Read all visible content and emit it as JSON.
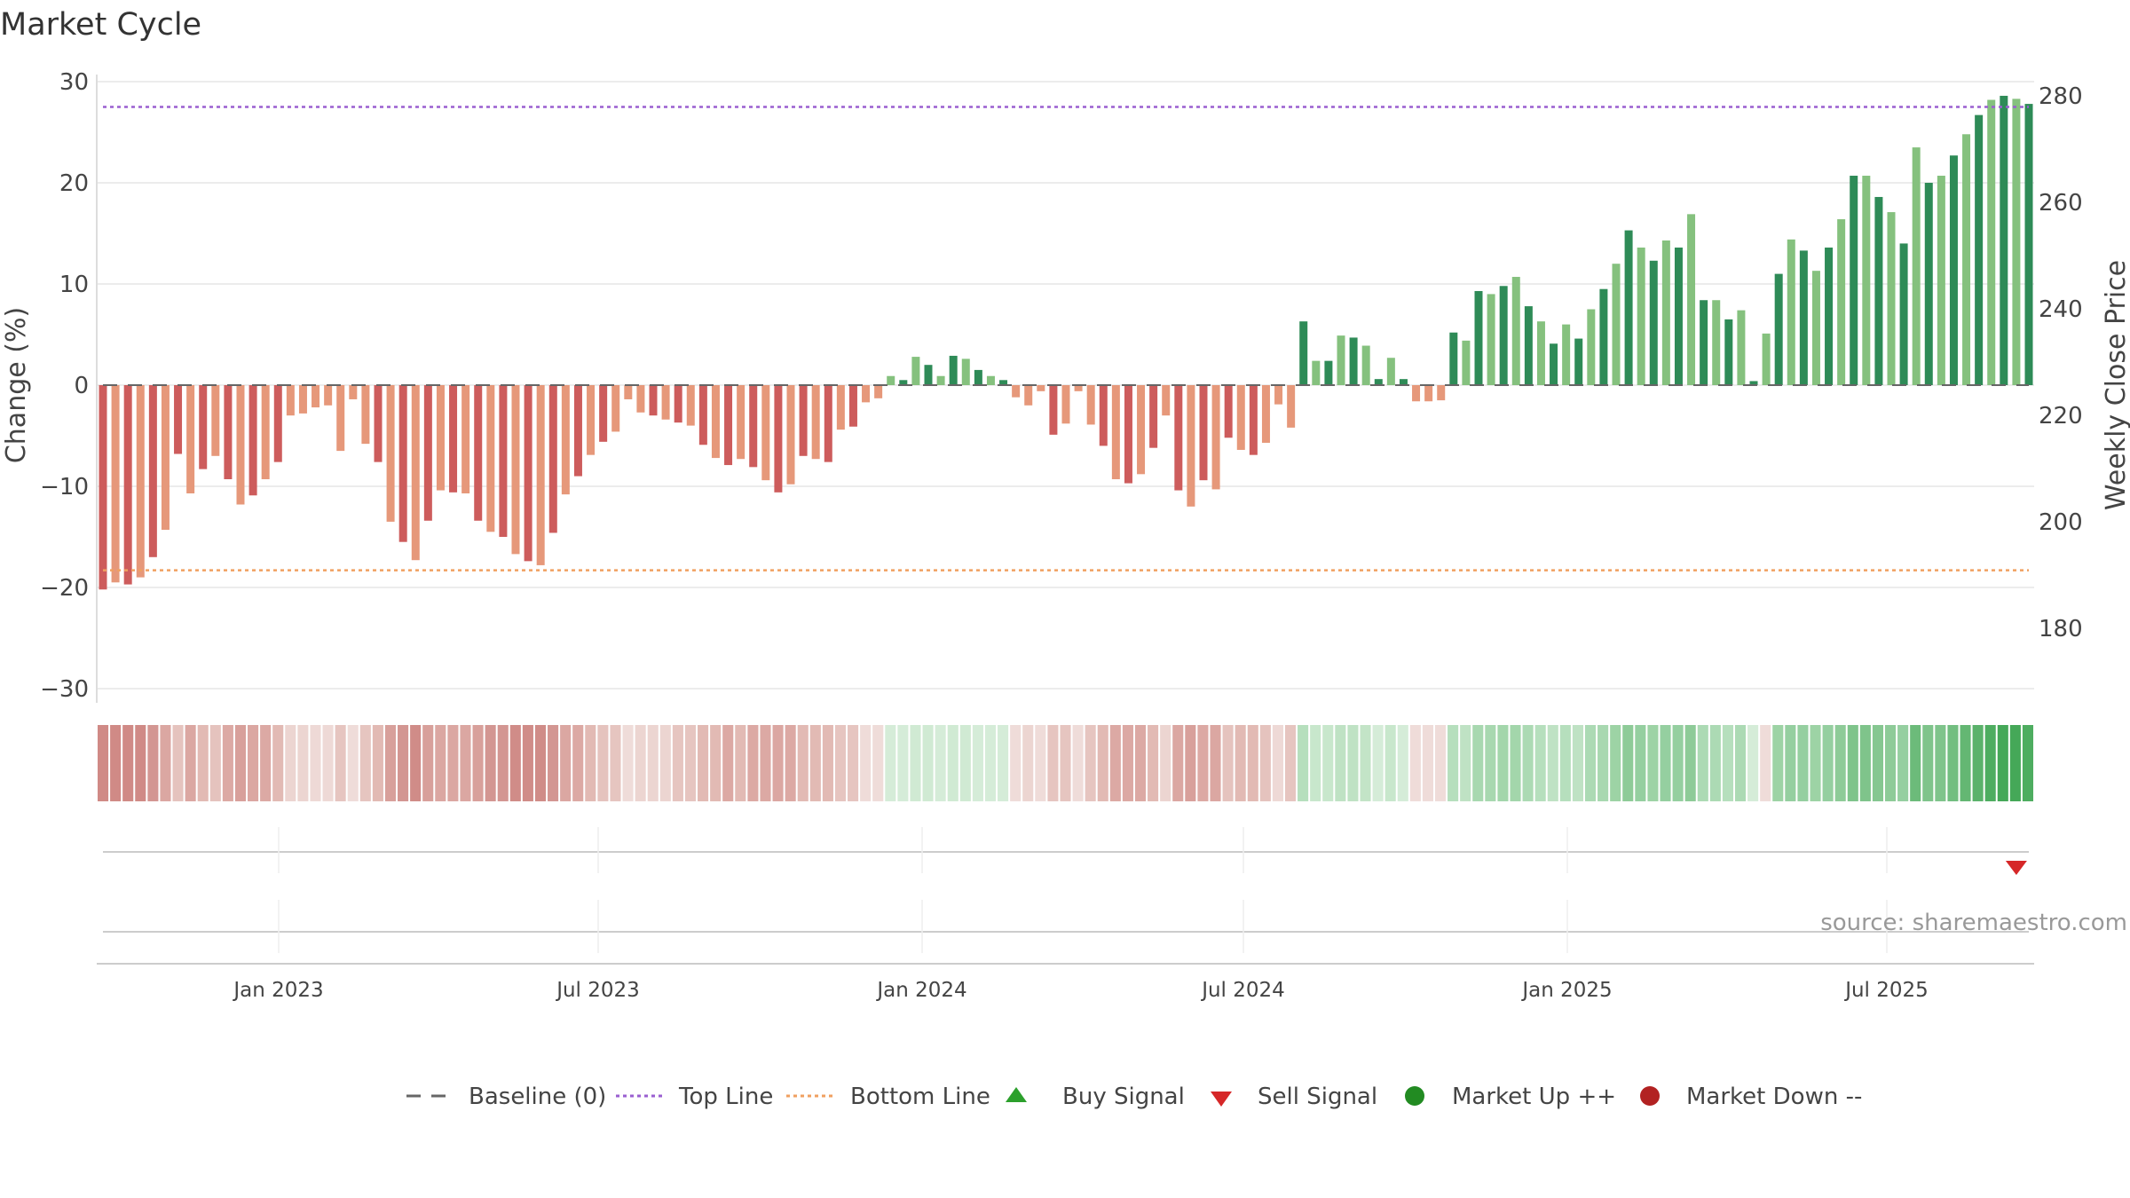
{
  "chart_data": {
    "type": "bar",
    "title": "Market Cycle",
    "ylabel_left": "Change (%)",
    "ylabel_right": "Weekly Close Price",
    "source": "source: sharemaestro.com",
    "y_left_ticks": [
      "30",
      "20",
      "10",
      "0",
      "−10",
      "−20",
      "−30"
    ],
    "y_right_ticks": [
      "280",
      "260",
      "240",
      "220",
      "200",
      "180"
    ],
    "ylim_left": [
      -30,
      30
    ],
    "ylim_right": [
      168,
      283
    ],
    "x_ticks": [
      "Jan 2023",
      "Jul 2023",
      "Jan 2024",
      "Jul 2024",
      "Jan 2025",
      "Jul 2025"
    ],
    "top_line": 27.5,
    "bottom_line": -18.3,
    "baseline": 0,
    "grid": true,
    "legend_position": "bottom-center",
    "colors": {
      "neg_dark": "#cd5c5c",
      "neg_light": "#e6987a",
      "pos_dark": "#2e8b57",
      "pos_light": "#85c17e",
      "top_line": "#9a5fd1",
      "bottom_line": "#f0a060",
      "baseline": "#666666",
      "sell_signal": "#d62728",
      "buy_signal": "#2ca02c",
      "market_up": "#228b22",
      "market_down": "#b22222"
    },
    "values": [
      -20.2,
      -19.5,
      -19.7,
      -19.0,
      -17.0,
      -14.3,
      -6.8,
      -10.7,
      -8.3,
      -7.0,
      -9.3,
      -11.8,
      -10.9,
      -9.3,
      -7.6,
      -3.0,
      -2.8,
      -2.2,
      -2.0,
      -6.5,
      -1.4,
      -5.8,
      -7.6,
      -13.5,
      -15.5,
      -17.3,
      -13.4,
      -10.4,
      -10.6,
      -10.7,
      -13.4,
      -14.5,
      -15.0,
      -16.7,
      -17.4,
      -17.8,
      -14.6,
      -10.8,
      -9.0,
      -6.9,
      -5.6,
      -4.6,
      -1.4,
      -2.7,
      -3.0,
      -3.4,
      -3.7,
      -4.0,
      -5.9,
      -7.2,
      -7.9,
      -7.3,
      -8.1,
      -9.4,
      -10.6,
      -9.8,
      -7.0,
      -7.3,
      -7.6,
      -4.4,
      -4.1,
      -1.7,
      -1.3,
      0.9,
      0.5,
      2.8,
      2.0,
      0.9,
      2.9,
      2.6,
      1.5,
      0.9,
      0.5,
      -1.2,
      -2.0,
      -0.6,
      -4.9,
      -3.8,
      -0.6,
      -3.9,
      -6.0,
      -9.3,
      -9.7,
      -8.8,
      -6.2,
      -3.0,
      -10.4,
      -12.0,
      -9.4,
      -10.3,
      -5.2,
      -6.4,
      -6.9,
      -5.7,
      -1.9,
      -4.2,
      6.3,
      2.4,
      2.4,
      4.9,
      4.7,
      3.9,
      0.6,
      2.7,
      0.6,
      -1.6,
      -1.6,
      -1.5,
      5.2,
      4.4,
      9.3,
      9.0,
      9.8,
      10.7,
      7.8,
      6.3,
      4.1,
      6.0,
      4.6,
      7.5,
      9.5,
      12.0,
      15.3,
      13.6,
      12.3,
      14.3,
      13.6,
      16.9,
      8.4,
      8.4,
      6.5,
      7.4,
      0.4,
      5.1,
      11.0,
      14.4,
      13.3,
      11.3,
      13.6,
      16.4,
      20.7,
      20.7,
      18.6,
      17.1,
      14.0,
      23.5,
      20.0,
      20.7,
      22.7,
      24.8,
      26.7,
      28.2,
      28.6,
      28.3,
      27.8
    ],
    "strip_colors": [
      "#d08a86",
      "#d08a86",
      "#d08a86",
      "#d08a86",
      "#d39692",
      "#dba7a2",
      "#e5c3be",
      "#dba7a2",
      "#e2bab4",
      "#e5c3be",
      "#dca9a4",
      "#d8a09b",
      "#dba7a2",
      "#dca9a4",
      "#e2bab4",
      "#ecd5d1",
      "#ecd5d1",
      "#eed9d6",
      "#eed9d6",
      "#e6c5c0",
      "#efdcd9",
      "#e6c5c0",
      "#e2bab4",
      "#d8a09b",
      "#d39692",
      "#d08c88",
      "#d8a09b",
      "#dba7a2",
      "#dba7a2",
      "#dba7a2",
      "#d8a09b",
      "#d39692",
      "#d39692",
      "#d08c88",
      "#d08c88",
      "#d08c88",
      "#d39692",
      "#dba7a2",
      "#dca9a4",
      "#e2bab4",
      "#e5c3be",
      "#e6c5c0",
      "#efdcd9",
      "#ecd5d1",
      "#ecd5d1",
      "#ecd5d1",
      "#e6c5c0",
      "#e6c5c0",
      "#e2bab4",
      "#e2bab4",
      "#dca9a4",
      "#e2bab4",
      "#dca9a4",
      "#dca9a4",
      "#dba7a2",
      "#dca9a4",
      "#e2bab4",
      "#e2bab4",
      "#e2bab4",
      "#e6c5c0",
      "#e6c5c0",
      "#efdcd9",
      "#efdcd9",
      "#d5ecd8",
      "#d5ecd8",
      "#d0ead3",
      "#d0ead3",
      "#d5ecd8",
      "#d0ead3",
      "#d0ead3",
      "#d5ecd8",
      "#d5ecd8",
      "#d5ecd8",
      "#efdcd9",
      "#ecd5d1",
      "#efdcd9",
      "#e6c5c0",
      "#e6c5c0",
      "#efdcd9",
      "#e6c5c0",
      "#e2bab4",
      "#dca9a4",
      "#dca9a4",
      "#dca9a4",
      "#e2bab4",
      "#ecd5d1",
      "#dba7a2",
      "#d8a09b",
      "#dca9a4",
      "#dba7a2",
      "#e5c3be",
      "#e2bab4",
      "#e2bab4",
      "#e5c3be",
      "#eed9d6",
      "#e6c5c0",
      "#b6dfbd",
      "#c8e7cc",
      "#c8e7cc",
      "#bfe2c4",
      "#bfe2c4",
      "#c3e4c7",
      "#d5ecd8",
      "#c8e7cc",
      "#d5ecd8",
      "#efdcd9",
      "#efdcd9",
      "#efdcd9",
      "#b6dfbd",
      "#bfe2c4",
      "#a8d8b0",
      "#a8d8b0",
      "#a3d6ab",
      "#a3d6ab",
      "#acdab4",
      "#b6dfbd",
      "#bfe2c4",
      "#b6dfbd",
      "#bfe2c4",
      "#acdab4",
      "#a8d8b0",
      "#9dd3a5",
      "#8ecb98",
      "#95cfa0",
      "#9dd3a5",
      "#95cfa0",
      "#95cfa0",
      "#8ecb98",
      "#acdab4",
      "#acdab4",
      "#b6dfbd",
      "#acdab4",
      "#d5ecd8",
      "#efdcd9",
      "#9dd3a5",
      "#95cfa0",
      "#95cfa0",
      "#9dd3a5",
      "#95cfa0",
      "#8ecb98",
      "#7fc48b",
      "#7fc48b",
      "#86c791",
      "#8ecb98",
      "#95cfa0",
      "#6cbb7a",
      "#7fc48b",
      "#7fc48b",
      "#72be80",
      "#64b773",
      "#5bb26b",
      "#4ead60",
      "#45a858",
      "#45a858",
      "#4ead60"
    ],
    "sell_signal_week": 153
  },
  "legend": {
    "baseline_label": "Baseline (0)",
    "top_line_label": "Top Line",
    "bottom_line_label": "Bottom Line",
    "buy_signal_label": "Buy Signal",
    "sell_signal_label": "Sell Signal",
    "market_up_label": "Market Up ++",
    "market_down_label": "Market Down --"
  }
}
